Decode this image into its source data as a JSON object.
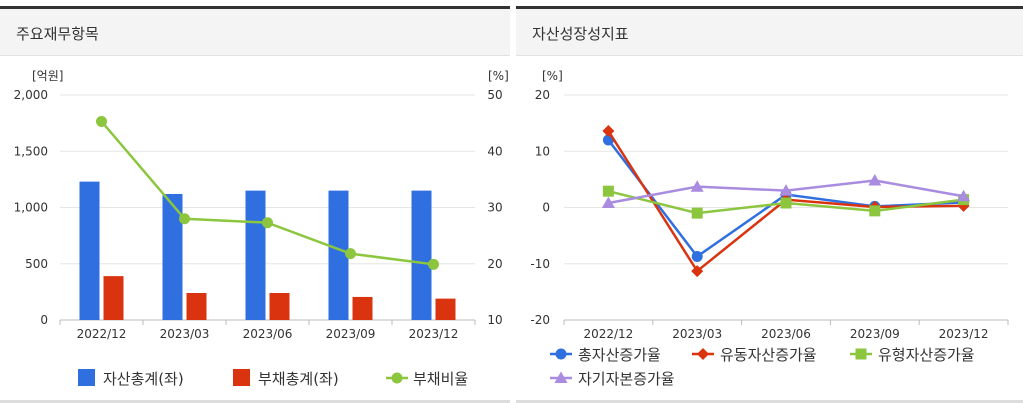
{
  "panels": {
    "left_title": "주요재무항목",
    "right_title": "자산성장성지표"
  },
  "chart_data": [
    {
      "type": "bar",
      "title": "주요재무항목",
      "categories": [
        "2022/12",
        "2023/03",
        "2023/06",
        "2023/09",
        "2023/12"
      ],
      "y_left_unit": "[억원]",
      "y_right_unit": "[%]",
      "y_left_ticks": [
        "2,000",
        "1,500",
        "1,000",
        "500",
        "0"
      ],
      "y_right_ticks": [
        "50",
        "40",
        "30",
        "20",
        "10"
      ],
      "ylim_left": [
        0,
        2000
      ],
      "ylim_right": [
        10,
        50
      ],
      "series": [
        {
          "name": "자산총계(좌)",
          "kind": "bar",
          "axis": "left",
          "color": "#2f6fe0",
          "values": [
            1230,
            1120,
            1150,
            1150,
            1150
          ]
        },
        {
          "name": "부채총계(좌)",
          "kind": "bar",
          "axis": "left",
          "color": "#d9340f",
          "values": [
            390,
            240,
            240,
            205,
            190
          ]
        },
        {
          "name": "부채비율",
          "kind": "line",
          "axis": "right",
          "color": "#8cc63f",
          "values": [
            45.3,
            28.0,
            27.3,
            21.8,
            19.9
          ]
        }
      ],
      "legend_position": "bottom",
      "grid": true
    },
    {
      "type": "line",
      "title": "자산성장성지표",
      "categories": [
        "2022/12",
        "2023/03",
        "2023/06",
        "2023/09",
        "2023/12"
      ],
      "y_unit": "[%]",
      "y_ticks": [
        "20",
        "10",
        "0",
        "-10",
        "-20"
      ],
      "ylim": [
        -20,
        20
      ],
      "series": [
        {
          "name": "총자산증가율",
          "marker": "circle",
          "color": "#2f6fe0",
          "values": [
            12.0,
            -8.7,
            2.3,
            0.2,
            0.9
          ]
        },
        {
          "name": "유동자산증가율",
          "marker": "diamond",
          "color": "#d9340f",
          "values": [
            13.6,
            -11.3,
            1.4,
            0.1,
            0.3
          ]
        },
        {
          "name": "유형자산증가율",
          "marker": "square",
          "color": "#8cc63f",
          "values": [
            2.9,
            -1.0,
            0.8,
            -0.6,
            1.4
          ]
        },
        {
          "name": "자기자본증가율",
          "marker": "triangle",
          "color": "#a98ce0",
          "values": [
            0.8,
            3.7,
            3.0,
            4.8,
            2.0
          ]
        }
      ],
      "legend_position": "bottom",
      "grid": true
    }
  ]
}
